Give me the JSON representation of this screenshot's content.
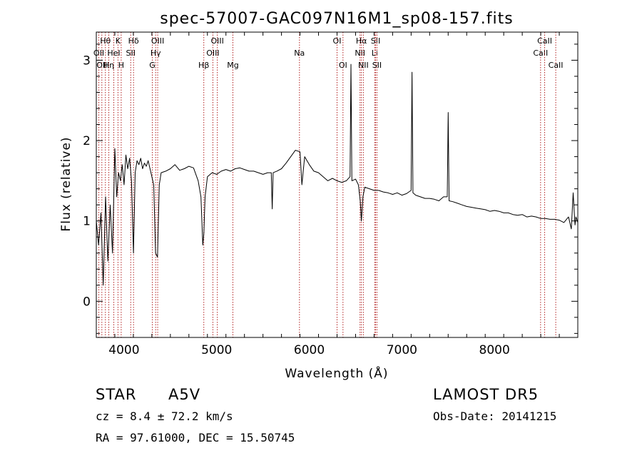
{
  "chart_data": {
    "type": "line",
    "title": "spec-57007-GAC097N16M1_sp08-157.fits",
    "xlabel": "Wavelength (Å)",
    "ylabel": "Flux (relative)",
    "xlim": [
      3700,
      8900
    ],
    "ylim": [
      -0.45,
      3.35
    ],
    "x_ticks": [
      4000,
      5000,
      6000,
      7000,
      8000
    ],
    "y_ticks": [
      0,
      1,
      2,
      3
    ],
    "grid": false,
    "series": [
      {
        "x": [
          3700,
          3725,
          3750,
          3775,
          3800,
          3825,
          3850,
          3875,
          3900,
          3920,
          3940,
          3960,
          3980,
          4000,
          4020,
          4040,
          4060,
          4080,
          4101,
          4120,
          4140,
          4160,
          4180,
          4200,
          4220,
          4240,
          4260,
          4280,
          4300,
          4320,
          4340,
          4361,
          4380,
          4400,
          4450,
          4500,
          4550,
          4600,
          4650,
          4700,
          4750,
          4800,
          4830,
          4850,
          4862,
          4875,
          4900,
          4950,
          5000,
          5050,
          5100,
          5150,
          5200,
          5250,
          5300,
          5350,
          5400,
          5450,
          5500,
          5550,
          5590,
          5600,
          5610,
          5650,
          5700,
          5750,
          5800,
          5850,
          5900,
          5920,
          5950,
          6000,
          6050,
          6100,
          6150,
          6200,
          6250,
          6300,
          6350,
          6400,
          6440,
          6450,
          6460,
          6500,
          6530,
          6550,
          6563,
          6580,
          6600,
          6650,
          6700,
          6750,
          6800,
          6850,
          6900,
          6950,
          7000,
          7050,
          7100,
          7110,
          7120,
          7150,
          7200,
          7250,
          7300,
          7350,
          7400,
          7450,
          7490,
          7500,
          7510,
          7550,
          7600,
          7650,
          7700,
          7750,
          7800,
          7850,
          7900,
          7950,
          8000,
          8050,
          8100,
          8150,
          8200,
          8250,
          8300,
          8350,
          8400,
          8450,
          8500,
          8550,
          8600,
          8650,
          8700,
          8750,
          8800,
          8830,
          8850,
          8870,
          8880,
          8900
        ],
        "y": [
          1.0,
          0.7,
          1.1,
          0.2,
          1.3,
          0.5,
          1.2,
          0.6,
          1.9,
          1.3,
          1.6,
          1.5,
          1.7,
          1.45,
          1.82,
          1.65,
          1.78,
          1.5,
          0.6,
          1.6,
          1.75,
          1.7,
          1.78,
          1.65,
          1.72,
          1.68,
          1.75,
          1.65,
          1.55,
          1.45,
          0.6,
          0.55,
          1.45,
          1.6,
          1.62,
          1.65,
          1.7,
          1.63,
          1.65,
          1.68,
          1.66,
          1.5,
          1.3,
          0.7,
          0.85,
          1.3,
          1.55,
          1.6,
          1.58,
          1.62,
          1.64,
          1.62,
          1.65,
          1.66,
          1.64,
          1.62,
          1.62,
          1.6,
          1.58,
          1.6,
          1.6,
          1.15,
          1.6,
          1.62,
          1.65,
          1.72,
          1.8,
          1.88,
          1.86,
          1.45,
          1.8,
          1.7,
          1.62,
          1.6,
          1.55,
          1.5,
          1.53,
          1.5,
          1.48,
          1.5,
          1.55,
          2.95,
          1.5,
          1.52,
          1.45,
          1.25,
          1.0,
          1.3,
          1.42,
          1.4,
          1.38,
          1.38,
          1.36,
          1.35,
          1.33,
          1.35,
          1.32,
          1.34,
          1.38,
          2.85,
          1.35,
          1.32,
          1.3,
          1.28,
          1.28,
          1.27,
          1.25,
          1.3,
          1.3,
          2.35,
          1.25,
          1.24,
          1.22,
          1.2,
          1.18,
          1.17,
          1.16,
          1.15,
          1.14,
          1.12,
          1.13,
          1.12,
          1.1,
          1.1,
          1.08,
          1.07,
          1.08,
          1.05,
          1.06,
          1.05,
          1.03,
          1.03,
          1.02,
          1.02,
          1.01,
          0.98,
          1.05,
          0.9,
          1.35,
          0.95,
          1.05,
          0.98
        ]
      }
    ],
    "lines": [
      {
        "w": 3727,
        "label": "OII",
        "row": 1
      },
      {
        "w": 3760,
        "label": "OII",
        "row": 2
      },
      {
        "w": 3798,
        "label": "Hθ",
        "row": 0
      },
      {
        "w": 3835,
        "label": "Hη",
        "row": 2
      },
      {
        "w": 3889,
        "label": "HeI",
        "row": 1
      },
      {
        "w": 3934,
        "label": "K",
        "row": 0
      },
      {
        "w": 3969,
        "label": "H",
        "row": 2
      },
      {
        "w": 4072,
        "label": "SII",
        "row": 1
      },
      {
        "w": 4102,
        "label": "Hδ",
        "row": 0
      },
      {
        "w": 4305,
        "label": "G",
        "row": 2
      },
      {
        "w": 4341,
        "label": "Hγ",
        "row": 1
      },
      {
        "w": 4363,
        "label": "OIII",
        "row": 0
      },
      {
        "w": 4861,
        "label": "Hβ",
        "row": 2
      },
      {
        "w": 4959,
        "label": "OIII",
        "row": 1
      },
      {
        "w": 5007,
        "label": "OIII",
        "row": 0
      },
      {
        "w": 5175,
        "label": "Mg",
        "row": 2
      },
      {
        "w": 5894,
        "label": "Na",
        "row": 1
      },
      {
        "w": 6300,
        "label": "OI",
        "row": 0
      },
      {
        "w": 6364,
        "label": "OI",
        "row": 2
      },
      {
        "w": 6548,
        "label": "NII",
        "row": 1
      },
      {
        "w": 6563,
        "label": "Hα",
        "row": 0
      },
      {
        "w": 6584,
        "label": "NII",
        "row": 2
      },
      {
        "w": 6707,
        "label": "Li",
        "row": 1
      },
      {
        "w": 6716,
        "label": "SII",
        "row": 0
      },
      {
        "w": 6731,
        "label": "SII",
        "row": 2
      },
      {
        "w": 8498,
        "label": "CaII",
        "row": 1
      },
      {
        "w": 8542,
        "label": "CaII",
        "row": 0
      },
      {
        "w": 8662,
        "label": "CaII",
        "row": 2
      }
    ]
  },
  "info": {
    "object_type": "STAR",
    "subclass": "A5V",
    "survey": "LAMOST DR5",
    "redshift": "cz = 8.4 ± 72.2 km/s",
    "obs_date": "Obs-Date: 20141215",
    "coordinates": "RA =  97.61000, DEC =  15.50745"
  },
  "colors": {
    "spectrum": "#000000",
    "line_markers": "#b22222",
    "axes": "#000000"
  }
}
